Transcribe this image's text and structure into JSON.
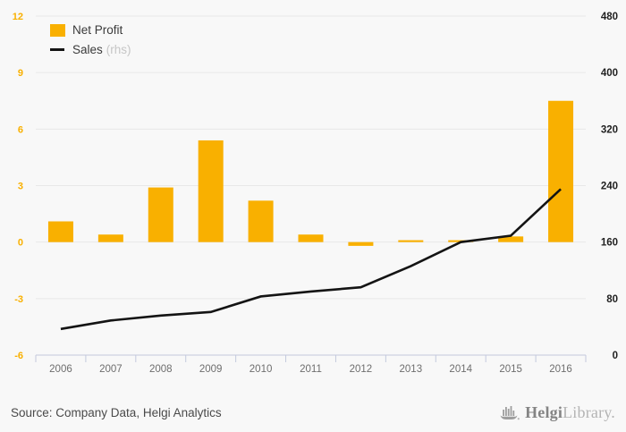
{
  "page": {
    "background": "#f8f8f8"
  },
  "legend": {
    "items": [
      {
        "label": "Net Profit",
        "suffix": "",
        "swatch": "square",
        "color": "#f9b000"
      },
      {
        "label": "Sales",
        "suffix": "(rhs)",
        "swatch": "line",
        "color": "#141414"
      }
    ]
  },
  "chart_data": {
    "type": "combo",
    "categories": [
      "2006",
      "2007",
      "2008",
      "2009",
      "2010",
      "2011",
      "2012",
      "2013",
      "2014",
      "2015",
      "2016"
    ],
    "series": [
      {
        "name": "Net Profit",
        "type": "bar",
        "axis": "left",
        "color": "#f9b000",
        "values": [
          1.1,
          0.4,
          2.9,
          5.4,
          2.2,
          0.4,
          -0.2,
          0.1,
          0.1,
          0.3,
          7.5
        ]
      },
      {
        "name": "Sales",
        "type": "line",
        "axis": "right",
        "color": "#141414",
        "values": [
          37,
          49,
          56,
          61,
          83,
          90,
          96,
          126,
          160,
          169,
          235
        ]
      }
    ],
    "left_axis": {
      "min": -6,
      "max": 12,
      "ticks": [
        12,
        9,
        6,
        3,
        0,
        -3,
        -6
      ],
      "label_color": "#f9b000"
    },
    "right_axis": {
      "min": 0,
      "max": 480,
      "ticks": [
        480,
        400,
        320,
        240,
        160,
        80,
        0
      ],
      "label_color": "#1f1f1f"
    },
    "grid": true,
    "legend_position": "top-left",
    "title": "",
    "xlabel": "",
    "ylabel": ""
  },
  "footer": {
    "source": "Source: Company Data, Helgi Analytics",
    "logo": {
      "bold": "Helgi",
      "light": "Library."
    }
  }
}
